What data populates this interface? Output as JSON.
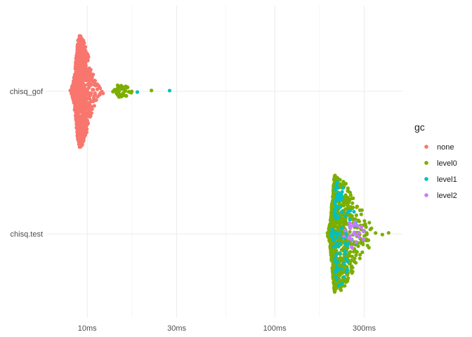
{
  "chart_data": {
    "type": "scatter",
    "subtype": "beeswarm",
    "title": "",
    "xlabel": "",
    "ylabel": "",
    "x_scale": "log10",
    "x_unit": "ms",
    "xlim": [
      6.0,
      480
    ],
    "x_ticks": [
      {
        "value": 10,
        "label": "10ms"
      },
      {
        "value": 30,
        "label": "30ms"
      },
      {
        "value": 100,
        "label": "100ms"
      },
      {
        "value": 300,
        "label": "300ms"
      }
    ],
    "categories": [
      "chisq_gof",
      "chisq.test"
    ],
    "grid": true,
    "legend": {
      "title": "gc",
      "position": "right",
      "items": [
        {
          "key": "none",
          "label": "none",
          "color": "#F8766D"
        },
        {
          "key": "level0",
          "label": "level0",
          "color": "#7CAE00"
        },
        {
          "key": "level1",
          "label": "level1",
          "color": "#00BFC4"
        },
        {
          "key": "level2",
          "label": "level2",
          "color": "#C77CFF"
        }
      ]
    },
    "series": [
      {
        "category": "chisq_gof",
        "gc": "none",
        "color": "#F8766D",
        "distribution": {
          "min": 8.1,
          "q05": 8.5,
          "median": 9.1,
          "q95": 10.2,
          "max": 12.2,
          "n": 1000
        },
        "outliers": []
      },
      {
        "category": "chisq_gof",
        "gc": "level0",
        "color": "#7CAE00",
        "distribution": {
          "min": 13.6,
          "q05": 13.8,
          "median": 14.7,
          "q95": 16.5,
          "max": 17.5,
          "n": 40
        },
        "outliers": [
          22.0
        ]
      },
      {
        "category": "chisq_gof",
        "gc": "level1",
        "color": "#00BFC4",
        "distribution": null,
        "outliers": [
          18.5,
          27.5
        ]
      },
      {
        "category": "chisq.test",
        "gc": "level0",
        "color": "#7CAE00",
        "distribution": {
          "min": 190,
          "q05": 198,
          "median": 210,
          "q95": 270,
          "max": 330,
          "n": 900
        },
        "outliers": [
          345,
          375,
          405
        ]
      },
      {
        "category": "chisq.test",
        "gc": "level1",
        "color": "#00BFC4",
        "distribution": {
          "min": 198,
          "q05": 205,
          "median": 215,
          "q95": 260,
          "max": 295,
          "n": 110
        },
        "outliers": []
      },
      {
        "category": "chisq.test",
        "gc": "level2",
        "color": "#C77CFF",
        "distribution": {
          "min": 225,
          "q05": 232,
          "median": 255,
          "q95": 290,
          "max": 310,
          "n": 25
        },
        "outliers": []
      }
    ]
  }
}
